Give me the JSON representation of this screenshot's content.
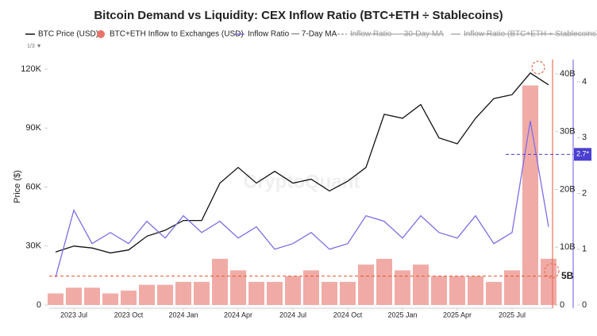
{
  "chart_data": {
    "type": "combo",
    "title": "Bitcoin Demand vs Liquidity: CEX Inflow Ratio (BTC+ETH ÷ Stablecoins)",
    "y_label": "Price ($)",
    "watermark": "CryptoQuant",
    "legend_page": "1/3 ▼",
    "x": [
      "2023-06",
      "2023-07",
      "2023-08",
      "2023-09",
      "2023-10",
      "2023-11",
      "2023-12",
      "2024-01",
      "2024-02",
      "2024-03",
      "2024-04",
      "2024-05",
      "2024-06",
      "2024-07",
      "2024-08",
      "2024-09",
      "2024-10",
      "2024-11",
      "2024-12",
      "2025-01",
      "2025-02",
      "2025-03",
      "2025-04",
      "2025-05",
      "2025-06",
      "2025-07",
      "2025-08",
      "2025-09"
    ],
    "xlim": [
      "2023-06",
      "2025-09"
    ],
    "xticks": [
      {
        "value": "2023-07",
        "label": "2023 Jul"
      },
      {
        "value": "2023-10",
        "label": "2023 Oct"
      },
      {
        "value": "2024-01",
        "label": "2024 Jan"
      },
      {
        "value": "2024-04",
        "label": "2024 Apr"
      },
      {
        "value": "2024-07",
        "label": "2024 Jul"
      },
      {
        "value": "2024-10",
        "label": "2024 Oct"
      },
      {
        "value": "2025-01",
        "label": "2025 Jan"
      },
      {
        "value": "2025-04",
        "label": "2025 Apr"
      },
      {
        "value": "2025-07",
        "label": "2025 Jul"
      }
    ],
    "ylim": [
      0,
      120000
    ],
    "yticks": [
      0,
      {
        "value": 30000,
        "label": "30K"
      },
      {
        "value": 60000,
        "label": "60K"
      },
      {
        "value": 90000,
        "label": "90K"
      },
      {
        "value": 120000,
        "label": "120K"
      }
    ],
    "y2lim": [
      0,
      40000000000
    ],
    "y2ticks": [
      0,
      {
        "value": 10000000000,
        "label": "10B"
      },
      {
        "value": 20000000000,
        "label": "20B"
      },
      {
        "value": 30000000000,
        "label": "30B"
      },
      {
        "value": 40000000000,
        "label": "40B"
      }
    ],
    "y3lim": [
      0,
      4
    ],
    "y3ticks": [
      0,
      1,
      2,
      3,
      4
    ],
    "grid": false,
    "series": [
      {
        "name": "BTC Price (USD)",
        "type": "line",
        "color": "#111111",
        "values": [
          27000,
          30000,
          29000,
          26500,
          28000,
          35000,
          38000,
          43000,
          43000,
          62000,
          70000,
          62000,
          68000,
          62000,
          64000,
          58000,
          63000,
          70000,
          97000,
          95000,
          102000,
          85000,
          82000,
          95000,
          105000,
          107000,
          118000,
          112000
        ]
      },
      {
        "name": "BTC+ETH Inflow to Exchanges (USD)",
        "type": "bar",
        "axis": "y2",
        "color": "#e8736b",
        "values": [
          2000000000.0,
          3000000000.0,
          3000000000.0,
          2000000000.0,
          2500000000.0,
          3500000000.0,
          3500000000.0,
          4000000000.0,
          4000000000.0,
          8000000000.0,
          6000000000.0,
          4000000000.0,
          4000000000.0,
          5000000000.0,
          6000000000.0,
          4000000000.0,
          4000000000.0,
          7000000000.0,
          8000000000.0,
          6000000000.0,
          7000000000.0,
          5000000000.0,
          5000000000.0,
          5000000000.0,
          4000000000.0,
          6000000000.0,
          38000000000.0,
          8000000000.0
        ]
      },
      {
        "name": "Inflow Ratio — 7-Day MA",
        "type": "line",
        "axis": "y3",
        "color": "#7b6ee6",
        "values": [
          0.5,
          1.7,
          1.1,
          1.3,
          1.1,
          1.5,
          1.2,
          1.6,
          1.3,
          1.5,
          1.2,
          1.4,
          1.0,
          1.1,
          1.3,
          1.0,
          1.1,
          1.6,
          1.5,
          1.2,
          1.6,
          1.3,
          1.2,
          1.6,
          1.1,
          1.3,
          3.3,
          1.4
        ]
      }
    ],
    "inactive_series": [
      {
        "name": "Inflow Ratio — 30-Day MA",
        "color": "#999999",
        "dashed": true
      },
      {
        "name": "Inflow Ratio (BTC+ETH ÷ Stablecoins)",
        "color": "#999999",
        "dashed": false
      }
    ],
    "annotations": [
      {
        "value": 5000000000,
        "label": "5B",
        "axis": "y2",
        "color": "#e0552f"
      },
      {
        "value": 2.7,
        "label": "2.7*",
        "axis": "y3",
        "color": "#4a3fd0"
      }
    ]
  }
}
